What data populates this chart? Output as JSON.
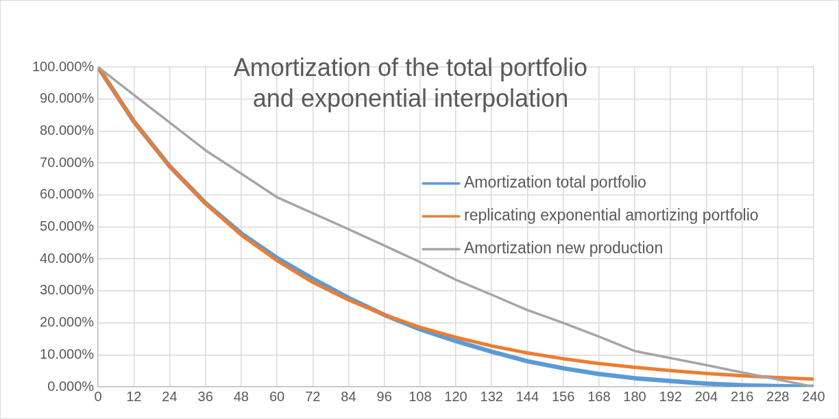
{
  "chart_data": {
    "type": "line",
    "title": "Amortization of the total portfolio\nand exponential interpolation",
    "x": [
      0,
      12,
      24,
      36,
      48,
      60,
      72,
      84,
      96,
      108,
      120,
      132,
      144,
      156,
      168,
      180,
      192,
      204,
      216,
      228,
      240
    ],
    "series": [
      {
        "name": "Amortization total portfolio",
        "color": "#5b9bd5",
        "values": [
          100,
          83,
          69,
          57.5,
          48,
          40.3,
          33.8,
          27.8,
          22.5,
          18,
          14.3,
          11,
          8,
          5.8,
          4,
          2.7,
          1.8,
          1,
          0.5,
          0.2,
          0
        ]
      },
      {
        "name": "replicating exponential amortizing portfolio",
        "color": "#ed7d31",
        "values": [
          100,
          83,
          69,
          57.3,
          47.5,
          39.5,
          32.7,
          27.2,
          22.5,
          18.6,
          15.5,
          12.8,
          10.6,
          8.8,
          7.3,
          6.1,
          5.1,
          4.2,
          3.5,
          2.9,
          2.4
        ]
      },
      {
        "name": "Amortization new production",
        "color": "#a5a5a5",
        "values": [
          100,
          91.3,
          82.7,
          74,
          66.7,
          59.3,
          54.3,
          49.3,
          44.2,
          39,
          33.5,
          28.8,
          24,
          20,
          15.7,
          11.2,
          9,
          6.8,
          4.5,
          2.3,
          0
        ]
      }
    ],
    "xlim": [
      0,
      240
    ],
    "xticks": [
      0,
      12,
      24,
      36,
      48,
      60,
      72,
      84,
      96,
      108,
      120,
      132,
      144,
      156,
      168,
      180,
      192,
      204,
      216,
      228,
      240
    ],
    "ylim": [
      0,
      100
    ],
    "yticks": [
      {
        "value": 0,
        "label": "0.000%"
      },
      {
        "value": 10,
        "label": "10.000%"
      },
      {
        "value": 20,
        "label": "20.000%"
      },
      {
        "value": 30,
        "label": "30.000%"
      },
      {
        "value": 40,
        "label": "40.000%"
      },
      {
        "value": 50,
        "label": "50.000%"
      },
      {
        "value": 60,
        "label": "60.000%"
      },
      {
        "value": 70,
        "label": "70.000%"
      },
      {
        "value": 80,
        "label": "80.000%"
      },
      {
        "value": 90,
        "label": "90.000%"
      },
      {
        "value": 100,
        "label": "100.000%"
      }
    ],
    "grid": true,
    "legend": "right",
    "marker": "none",
    "line_style": "solid"
  }
}
